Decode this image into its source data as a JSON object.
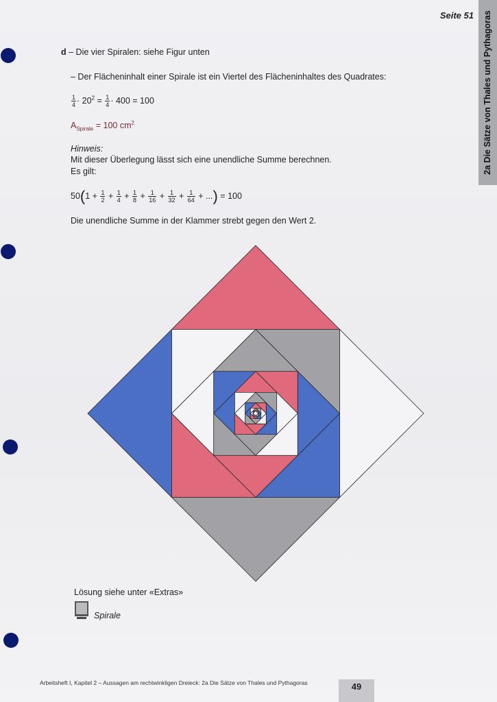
{
  "header": {
    "page_ref": "Seite 51"
  },
  "side_tab": {
    "label": "2a Die Sätze von Thales und Pythagoras"
  },
  "section": {
    "letter": "d",
    "heading": "– Die vier Spiralen: siehe Figur unten",
    "statement": "– Der Flächeninhalt einer Spirale ist ein Viertel des Flächeninhaltes des Quadrates:"
  },
  "calculation": {
    "frac_num": "1",
    "frac_den": "4",
    "part1": "· 20",
    "exp": "2",
    "eq": "=",
    "part2": "· 400  =  100"
  },
  "area": {
    "label": "A",
    "sub": "Spirale",
    "value": "=  100 cm",
    "exp": "2"
  },
  "hint": {
    "title": "Hinweis:",
    "line1": "Mit dieser Überlegung lässt sich eine unendliche Summe berechnen.",
    "line2": "Es gilt:"
  },
  "series": {
    "prefix": "50",
    "one": "1 +",
    "terms": [
      {
        "num": "1",
        "den": "2"
      },
      {
        "num": "1",
        "den": "4"
      },
      {
        "num": "1",
        "den": "8"
      },
      {
        "num": "1",
        "den": "16"
      },
      {
        "num": "1",
        "den": "32"
      },
      {
        "num": "1",
        "den": "64"
      }
    ],
    "tail": "+ ...",
    "result": "=  100"
  },
  "conclusion": "Die unendliche Summe in der Klammer strebt gegen den Wert 2.",
  "solution_note": "Lösung siehe unter «Extras»",
  "link_label": "Spirale",
  "footer": {
    "text": "Arbeitsheft I, Kapitel 2 – Aussagen am rechtwinkligen Dreieck: 2a Die Sätze von Thales und Pythagoras",
    "page_number": "49"
  },
  "colors": {
    "spiral_red": "#e0697c",
    "spiral_blue": "#4a6fc4",
    "spiral_gray": "#a2a2a6",
    "spiral_white": "#f4f4f6",
    "hole": "#0b1a6e"
  }
}
